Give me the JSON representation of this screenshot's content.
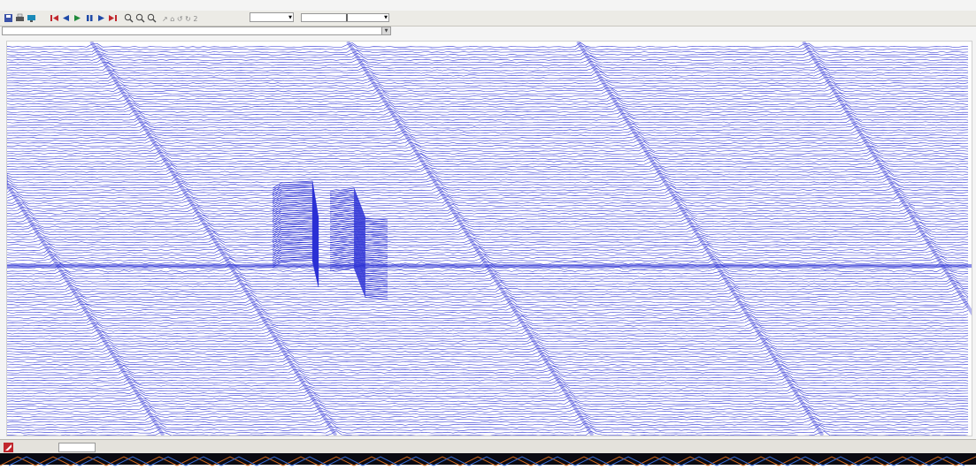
{
  "menu": [
    "",
    "",
    "",
    "",
    ""
  ],
  "toolbar": {
    "buttons": [
      "save-icon",
      "print-icon",
      "first-icon",
      "back-icon",
      "play-icon",
      "pause-icon",
      "forward-icon",
      "last-icon",
      "zoom-in-icon",
      "zoom-out-icon",
      "zoom-fit-icon"
    ],
    "position_label": "",
    "position_value": ""
  },
  "path": "",
  "plot": {
    "trace_color": "#2a2fd4",
    "background": "#ffffff",
    "ridge_count": 4
  },
  "status": {
    "fields": [
      "",
      "",
      "",
      "",
      "",
      ""
    ]
  },
  "colors": {
    "accent": "#2a2fd4",
    "toolbar": "#ecebe6"
  }
}
